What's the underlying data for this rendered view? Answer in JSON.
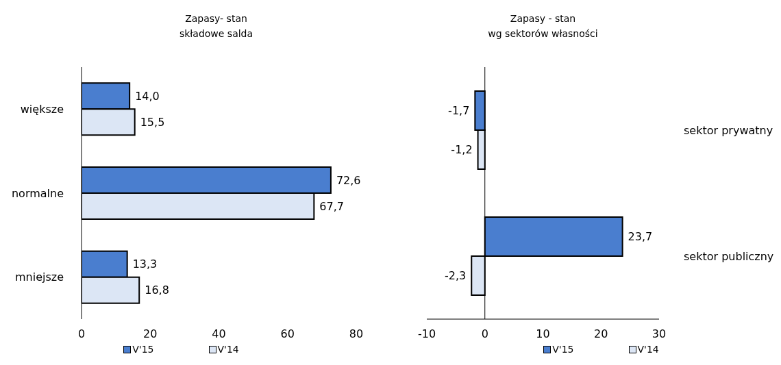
{
  "chart_data": [
    {
      "type": "bar",
      "orientation": "horizontal",
      "title": "Zapasy- stan",
      "subtitle": "składowe salda",
      "categories": [
        "większe",
        "normalne",
        "mniejsze"
      ],
      "series": [
        {
          "name": "V'15",
          "color": "#4a7ecf",
          "values": [
            14.0,
            72.6,
            13.3
          ],
          "value_labels": [
            "14,0",
            "72,6",
            "13,3"
          ]
        },
        {
          "name": "V'14",
          "color": "#dce6f5",
          "values": [
            15.5,
            67.7,
            16.8
          ],
          "value_labels": [
            "15,5",
            "67,7",
            "16,8"
          ]
        }
      ],
      "xlim": [
        0,
        80
      ],
      "xticks": [
        0,
        20,
        40,
        60,
        80
      ],
      "legend": "bottom",
      "grid": false
    },
    {
      "type": "bar",
      "orientation": "horizontal",
      "title": "Zapasy - stan",
      "subtitle": "wg sektorów własności",
      "categories": [
        "sektor prywatny",
        "sektor publiczny"
      ],
      "series": [
        {
          "name": "V'15",
          "color": "#4a7ecf",
          "values": [
            -1.7,
            23.7
          ],
          "value_labels": [
            "-1,7",
            "23,7"
          ]
        },
        {
          "name": "V'14",
          "color": "#dce6f5",
          "values": [
            -1.2,
            -2.3
          ],
          "value_labels": [
            "-1,2",
            "-2,3"
          ]
        }
      ],
      "xlim": [
        -10,
        30
      ],
      "xticks": [
        -10,
        0,
        10,
        20,
        30
      ],
      "ref_lines": [
        {
          "axis": "x",
          "value": 0,
          "color": "#000000"
        }
      ],
      "legend": "bottom",
      "grid": false
    }
  ]
}
